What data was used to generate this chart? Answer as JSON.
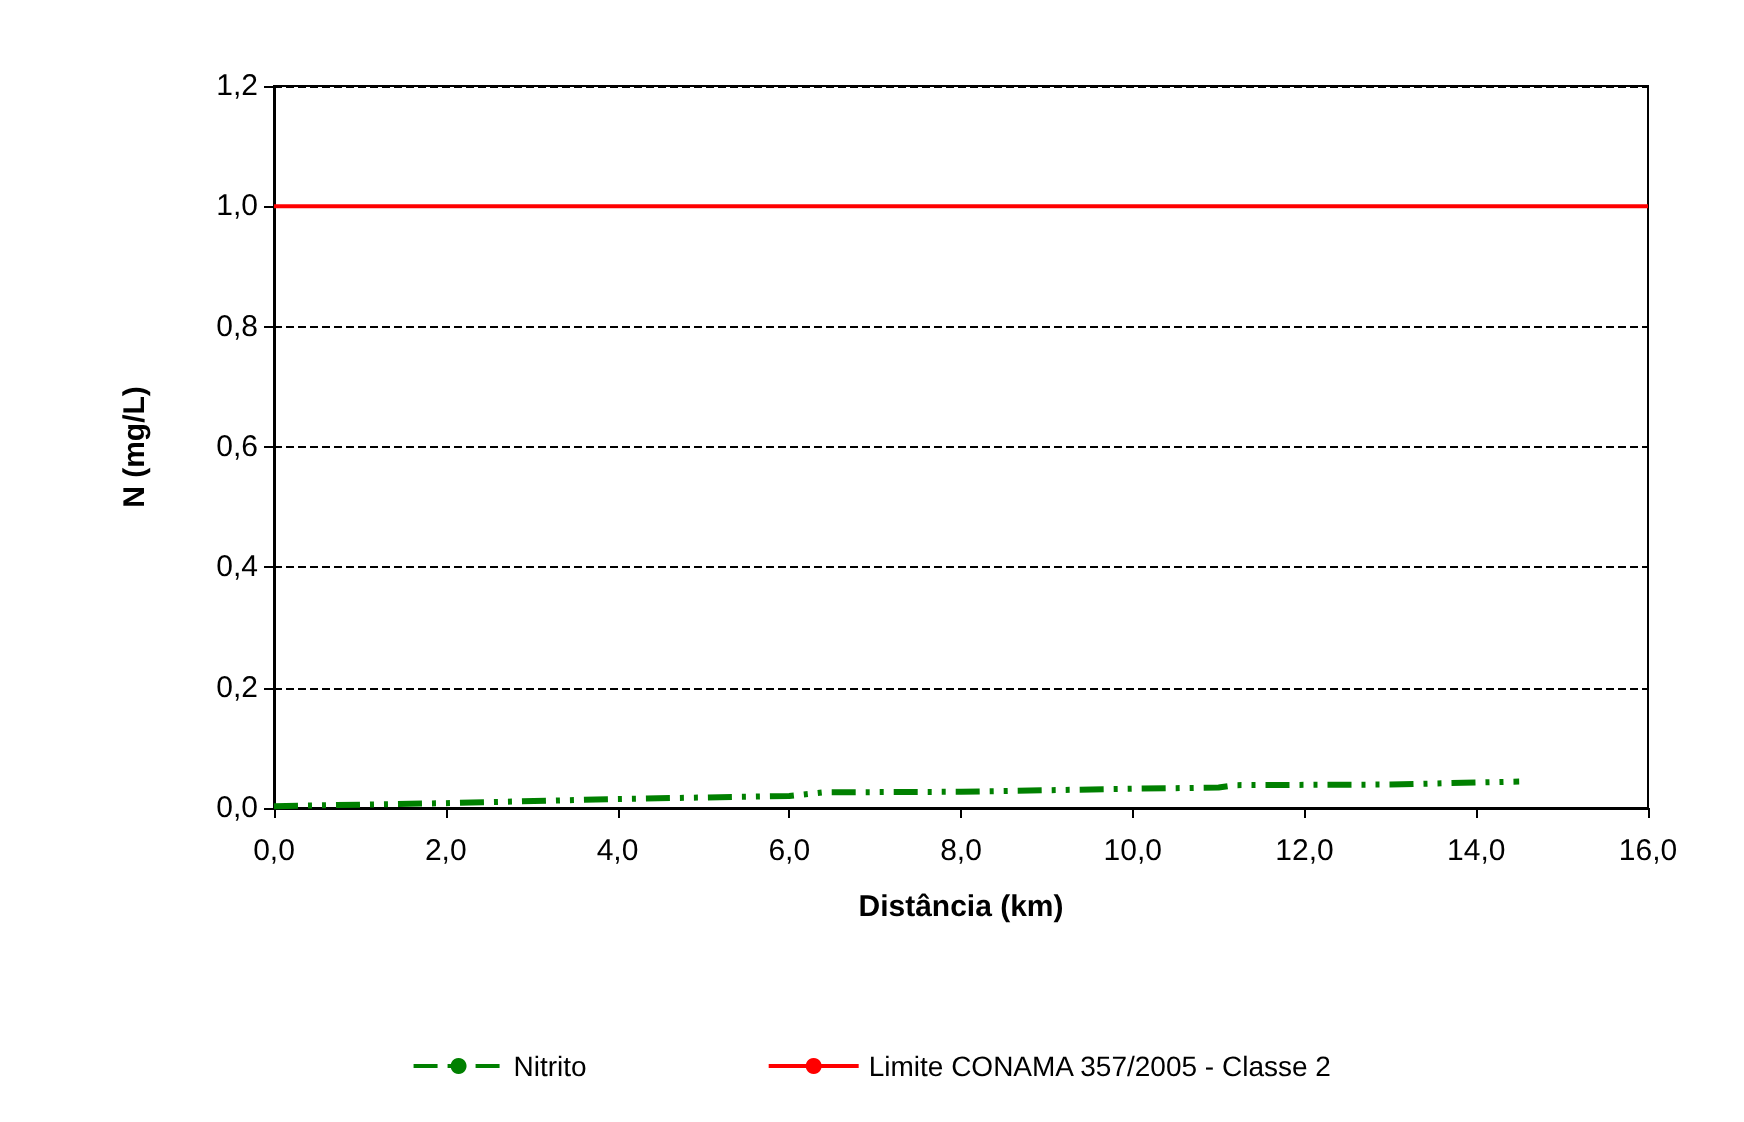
{
  "chart_data": {
    "type": "line",
    "xlabel": "Distância (km)",
    "ylabel": "N (mg/L)",
    "xlim": [
      0,
      16
    ],
    "xticks": [
      {
        "value": 0,
        "label": "0,0"
      },
      {
        "value": 2,
        "label": "2,0"
      },
      {
        "value": 4,
        "label": "4,0"
      },
      {
        "value": 6,
        "label": "6,0"
      },
      {
        "value": 8,
        "label": "8,0"
      },
      {
        "value": 10,
        "label": "10,0"
      },
      {
        "value": 12,
        "label": "12,0"
      },
      {
        "value": 14,
        "label": "14,0"
      },
      {
        "value": 16,
        "label": "16,0"
      }
    ],
    "ylim": [
      0,
      1.2
    ],
    "yticks": [
      {
        "value": 0,
        "label": "0,0"
      },
      {
        "value": 0.2,
        "label": "0,2"
      },
      {
        "value": 0.4,
        "label": "0,4"
      },
      {
        "value": 0.6,
        "label": "0,6"
      },
      {
        "value": 0.8,
        "label": "0,8"
      },
      {
        "value": 1,
        "label": "1,0"
      },
      {
        "value": 1.2,
        "label": "1,2"
      }
    ],
    "grid": "y",
    "legend": "bottom",
    "marker": "none",
    "series": [
      {
        "name": "Nitrito",
        "color": "#008000",
        "line_style": "dashed",
        "x": [
          0,
          2,
          4,
          6,
          6.4,
          8,
          10,
          11,
          11.2,
          13,
          14.5
        ],
        "values": [
          0.003,
          0.008,
          0.015,
          0.02,
          0.026,
          0.027,
          0.032,
          0.034,
          0.038,
          0.039,
          0.044
        ]
      },
      {
        "name": "Limite CONAMA 357/2005 - Classe 2",
        "color": "#ff0000",
        "line_style": "solid",
        "x": [
          0,
          16
        ],
        "values": [
          1,
          1
        ]
      }
    ]
  }
}
